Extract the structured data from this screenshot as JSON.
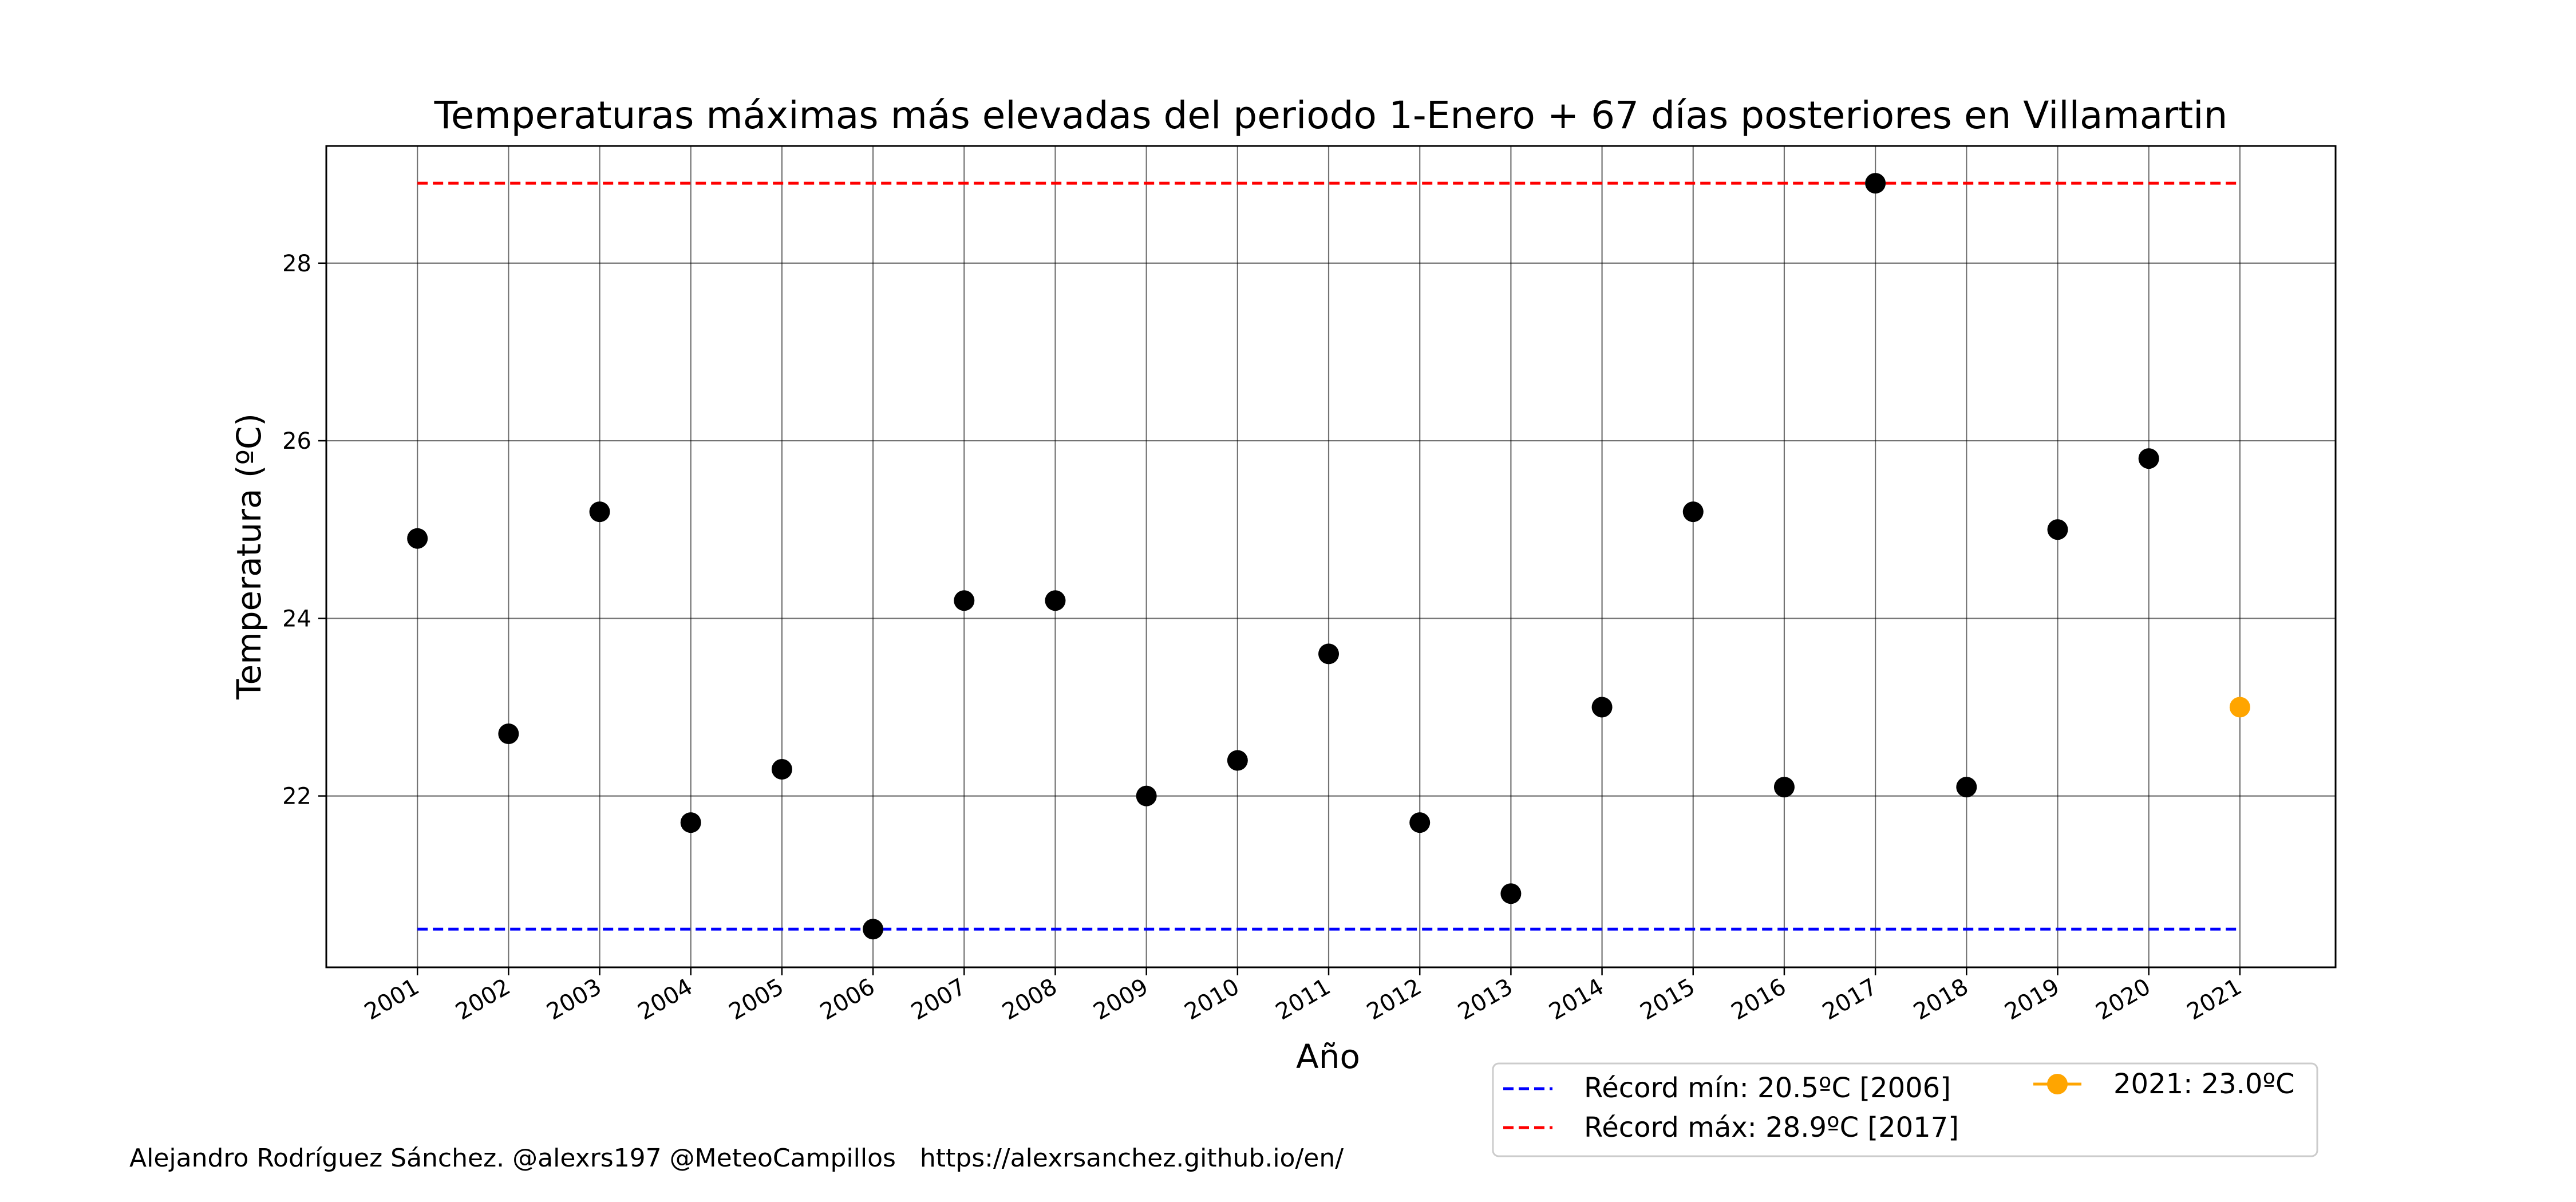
{
  "chart_data": {
    "type": "scatter",
    "title": "Temperaturas máximas más elevadas del periodo 1-Enero + 67 días posteriores en Villamartin",
    "xlabel": "Año",
    "ylabel": "Temperatura (ºC)",
    "x": [
      2001,
      2002,
      2003,
      2004,
      2005,
      2006,
      2007,
      2008,
      2009,
      2010,
      2011,
      2012,
      2013,
      2014,
      2015,
      2016,
      2017,
      2018,
      2019,
      2020
    ],
    "x_tick_labels": [
      "2001",
      "2002",
      "2003",
      "2004",
      "2005",
      "2006",
      "2007",
      "2008",
      "2009",
      "2010",
      "2011",
      "2012",
      "2013",
      "2014",
      "2015",
      "2016",
      "2017",
      "2018",
      "2019",
      "2020",
      "2021"
    ],
    "values": [
      24.9,
      22.7,
      25.2,
      21.7,
      22.3,
      20.5,
      24.2,
      24.2,
      22.0,
      22.4,
      23.6,
      21.7,
      20.9,
      23.0,
      25.2,
      22.1,
      28.9,
      22.1,
      25.0,
      25.8
    ],
    "series_color": "#000000",
    "highlight": {
      "x": 2021,
      "value": 23.0,
      "label": "2021: 23.0ºC",
      "color": "#ffa500"
    },
    "record_min": {
      "value": 20.5,
      "year": 2006,
      "label": "Récord mín: 20.5ºC [2006]",
      "color": "#0000ff"
    },
    "record_max": {
      "value": 28.9,
      "year": 2017,
      "label": "Récord máx: 28.9ºC [2017]",
      "color": "#ff0000"
    },
    "y_ticks": [
      22,
      24,
      26,
      28
    ],
    "xlim": [
      2000,
      2022.05
    ],
    "ylim": [
      20.07,
      29.32
    ],
    "grid": true,
    "legend_position": "bottom-right"
  },
  "footer": "Alejandro Rodríguez Sánchez. @alexrs197 @MeteoCampillos   https://alexrsanchez.github.io/en/"
}
